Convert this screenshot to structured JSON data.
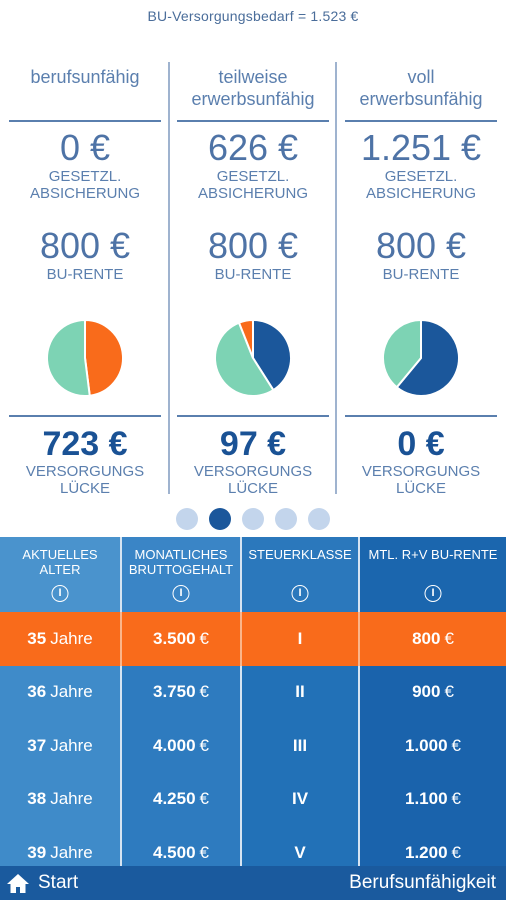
{
  "header": {
    "bedarf": "BU-Versorgungsbedarf = 1.523 €"
  },
  "columns": [
    {
      "title_line1": "berufsunfähig",
      "title_line2": "",
      "gesetzl_value": "0 €",
      "gesetzl_label1": "GESETZL.",
      "gesetzl_label2": "ABSICHERUNG",
      "rente_value": "800 €",
      "rente_label": "BU-RENTE",
      "luecke_value": "723 €",
      "luecke_label1": "VERSORGUNGS",
      "luecke_label2": "LÜCKE",
      "pie": [
        {
          "fraction": 0.48,
          "color": "#f96b1b"
        },
        {
          "fraction": 0.52,
          "color": "#7dd3b4"
        }
      ]
    },
    {
      "title_line1": "teilweise",
      "title_line2": "erwerbsunfähig",
      "gesetzl_value": "626 €",
      "gesetzl_label1": "GESETZL.",
      "gesetzl_label2": "ABSICHERUNG",
      "rente_value": "800 €",
      "rente_label": "BU-RENTE",
      "luecke_value": "97 €",
      "luecke_label1": "VERSORGUNGS",
      "luecke_label2": "LÜCKE",
      "pie": [
        {
          "fraction": 0.41,
          "color": "#1b579b"
        },
        {
          "fraction": 0.53,
          "color": "#7dd3b4"
        },
        {
          "fraction": 0.06,
          "color": "#f96b1b"
        }
      ]
    },
    {
      "title_line1": "voll",
      "title_line2": "erwerbsunfähig",
      "gesetzl_value": "1.251 €",
      "gesetzl_label1": "GESETZL.",
      "gesetzl_label2": "ABSICHERUNG",
      "rente_value": "800 €",
      "rente_label": "BU-RENTE",
      "luecke_value": "0 €",
      "luecke_label1": "VERSORGUNGS",
      "luecke_label2": "LÜCKE",
      "pie": [
        {
          "fraction": 0.61,
          "color": "#1b579b"
        },
        {
          "fraction": 0.39,
          "color": "#7dd3b4"
        }
      ]
    }
  ],
  "pager": {
    "count": 5,
    "active_index": 1
  },
  "table": {
    "headers": [
      {
        "line1": "AKTUELLES",
        "line2": "ALTER"
      },
      {
        "line1": "MONATLICHES",
        "line2": "BRUTTOGEHALT"
      },
      {
        "line1": "STEUERKLASSE",
        "line2": ""
      },
      {
        "line1": "MTL. R+V BU-RENTE",
        "line2": ""
      }
    ],
    "rows": [
      {
        "age_num": "35",
        "age_unit": "Jahre",
        "gehalt_num": "3.500",
        "gehalt_unit": "€",
        "klasse": "I",
        "rente_num": "800",
        "rente_unit": "€",
        "selected": true
      },
      {
        "age_num": "36",
        "age_unit": "Jahre",
        "gehalt_num": "3.750",
        "gehalt_unit": "€",
        "klasse": "II",
        "rente_num": "900",
        "rente_unit": "€",
        "selected": false
      },
      {
        "age_num": "37",
        "age_unit": "Jahre",
        "gehalt_num": "4.000",
        "gehalt_unit": "€",
        "klasse": "III",
        "rente_num": "1.000",
        "rente_unit": "€",
        "selected": false
      },
      {
        "age_num": "38",
        "age_unit": "Jahre",
        "gehalt_num": "4.250",
        "gehalt_unit": "€",
        "klasse": "IV",
        "rente_num": "1.100",
        "rente_unit": "€",
        "selected": false
      },
      {
        "age_num": "39",
        "age_unit": "Jahre",
        "gehalt_num": "4.500",
        "gehalt_unit": "€",
        "klasse": "V",
        "rente_num": "1.200",
        "rente_unit": "€",
        "selected": false
      }
    ]
  },
  "bottom_bar": {
    "start_label": "Start",
    "section_label": "Berufsunfähigkeit",
    "home_icon": "home-icon"
  },
  "colors": {
    "accent_orange": "#f96b1b",
    "navy": "#1b579b",
    "mint": "#7dd3b4"
  }
}
